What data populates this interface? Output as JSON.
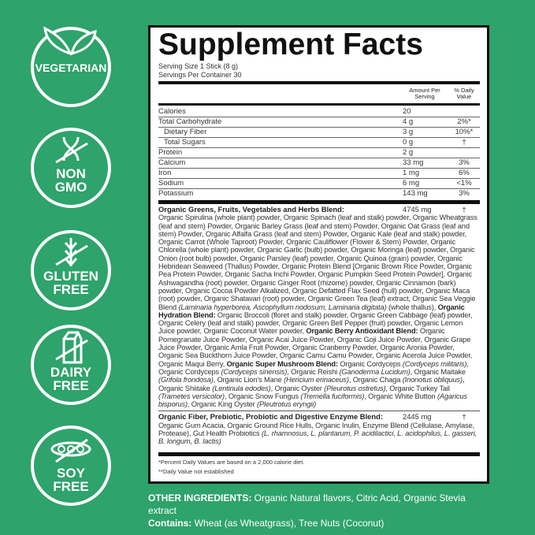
{
  "brand_color": "#2ea36b",
  "badges": [
    {
      "icon": "leaf-icon",
      "label": "VEGETARIAN"
    },
    {
      "icon": "dna-icon",
      "label": "NON GMO"
    },
    {
      "icon": "wheat-icon",
      "label": "GLUTEN FREE"
    },
    {
      "icon": "milk-carton-icon",
      "label": "DAIRY FREE"
    },
    {
      "icon": "soybean-icon",
      "label": "SOY FREE"
    }
  ],
  "facts": {
    "title": "Supplement Facts",
    "serving_size": "Serving Size 1 Stick (8 g)",
    "servings_per_container": "Servings Per Container 30",
    "col_amount": "Amount Per Serving",
    "col_dv": "% Daily Value",
    "rows": [
      {
        "name": "Calories",
        "amount": "20",
        "dv": ""
      },
      {
        "name": "Total Carbohydrate",
        "amount": "4 g",
        "dv": "2%*"
      },
      {
        "name": "Dietary Fiber",
        "amount": "3 g",
        "dv": "10%*"
      },
      {
        "name": "Total Sugars",
        "amount": "0 g",
        "dv": "†"
      },
      {
        "name": "Protein",
        "amount": "2 g",
        "dv": ""
      },
      {
        "name": "Calcium",
        "amount": "33 mg",
        "dv": "3%"
      },
      {
        "name": "Iron",
        "amount": "1 mg",
        "dv": "6%"
      },
      {
        "name": "Sodium",
        "amount": "6 mg",
        "dv": "<1%"
      },
      {
        "name": "Potassium",
        "amount": "143 mg",
        "dv": "3%"
      }
    ],
    "blend1": {
      "name": "Organic Greens, Fruits, Vegetables and Herbs Blend:",
      "amount": "4745 mg",
      "dv": "†",
      "segments": [
        {
          "s": "",
          "t": "Organic Spirulina (whole plant) powder, Organic Spinach (leaf and stalk) powder, Organic Wheatgrass (leaf and stem) Powder, Organic Barley Grass (leaf and stem) Powder, Organic Oat Grass (leaf and stem) Powder, Organic Alfalfa Grass (leaf and stem) Powder, Organic Kale (leaf and stalk) powder, Organic Carrot (Whole Taproot) Powder, Organic Cauliflower (Flower & Stem) Powder, Organic Chlorella (whole plant) powder, Organic Garlic (bulb) powder, Organic Moringa (leaf) powder, Organic Onion (root bulb) powder, Organic Parsley (leaf) powder, Organic Quinoa (grain) powder, Organic Hebridean Seaweed (Thallus) Powder, Organic Protein Blend [Organic Brown Rice Powder, Organic Pea Protein Powder, Organic Sacha Inchi Powder, Organic Pumpkin Seed Protein Powder], Organic Ashwagandha (root) powder, Organic Ginger Root (rhizome) powder, Organic Cinnamon (bark) powder, Organic Cocoa Powder Alkalized, Organic Defatted Flax Seed (hull) powder, Organic Maca (root) powder, Organic Shatavari (root) powder, Organic Green Tea (leaf) extract, Organic Sea Veggie Blend "
        },
        {
          "s": "i",
          "t": "(Laminaria hyperborea, Ascophyllum nodosum, Laminaria digitata)"
        },
        {
          "s": "",
          "t": " (whole thallus), "
        },
        {
          "s": "b",
          "t": "Organic Hydration Blend:"
        },
        {
          "s": "",
          "t": " Organic Broccoli (floret and stalk) powder, Organic Green Cabbage (leaf) powder, Organic Celery (leaf and stalk) powder, Organic Green Bell Pepper (fruit) powder, Organic Lemon Juice powder, Organic Coconut Water powder, "
        },
        {
          "s": "b",
          "t": "Organic Berry Antioxidant Blend:"
        },
        {
          "s": "",
          "t": " Organic Pomegranate Juice Powder, Organic Acai Juice Powder, Organic Goji Juice Powder, Organic Grape Juice Powder, Organic Amla Fruit Powder, Organic Cranberry Powder, Organic Aronia Powder, Organic Sea Buckthorn Juice Powder, Organic Camu Camu Powder, Organic Acerola Juice Powder, Organic Maqui Berry, "
        },
        {
          "s": "b",
          "t": "Organic Super Mushroom Blend:"
        },
        {
          "s": "",
          "t": " Organic Cordyceps "
        },
        {
          "s": "i",
          "t": "(Cordyceps militaris)"
        },
        {
          "s": "",
          "t": ", Organic Cordyceps "
        },
        {
          "s": "i",
          "t": "(Cordyceps sinensis)"
        },
        {
          "s": "",
          "t": ", Organic Reishi "
        },
        {
          "s": "i",
          "t": "(Ganoderma Lucidum)"
        },
        {
          "s": "",
          "t": ", Organic Maitake "
        },
        {
          "s": "i",
          "t": "(Grifola frondosa)"
        },
        {
          "s": "",
          "t": ", Organic Lion's Mane "
        },
        {
          "s": "i",
          "t": "(Hericium erinaceus)"
        },
        {
          "s": "",
          "t": ", Organic Chaga "
        },
        {
          "s": "i",
          "t": "(Inonotus obliquus)"
        },
        {
          "s": "",
          "t": ", Organic Shiitake "
        },
        {
          "s": "i",
          "t": "(Lentinula edodes)"
        },
        {
          "s": "",
          "t": ", Organic Oyster "
        },
        {
          "s": "i",
          "t": "(Pleurotus ostretus)"
        },
        {
          "s": "",
          "t": ", Organic Turkey Tail "
        },
        {
          "s": "i",
          "t": "(Trametes versicolor)"
        },
        {
          "s": "",
          "t": ", Organic Snow Fungus "
        },
        {
          "s": "i",
          "t": "(Tremella fuciformis)"
        },
        {
          "s": "",
          "t": ", Organic White Button "
        },
        {
          "s": "i",
          "t": "(Agaricus bisporus)"
        },
        {
          "s": "",
          "t": ", Organic King Oyster "
        },
        {
          "s": "i",
          "t": "(Pleutrotus eryngii)"
        }
      ]
    },
    "blend2": {
      "name": "Organic Fiber, Prebiotic, Probiotic and Digestive Enzyme Blend:",
      "amount": "2445 mg",
      "dv": "†",
      "segments": [
        {
          "s": "",
          "t": "Organic Gum Acacia, Organic Ground Rice Hulls, Organic Inulin, Enzyme Blend (Cellulase, Amylase, Protease), Gut Health Probiotics "
        },
        {
          "s": "i",
          "t": "(L. rhamnosus, L. plantarum, P. acidilactici, L. acidophilus, L. gasseri, B. longum, B. lactis)"
        }
      ]
    },
    "footnote1": "*Percent Daily Values are based on a 2,000 calorie diet.",
    "footnote2": "**Daily Value not established"
  },
  "other_ingredients": {
    "label": "OTHER INGREDIENTS:",
    "text": " Organic Natural flavors, Citric Acid, Organic Stevia extract"
  },
  "contains": {
    "label": "Contains:",
    "text": " Wheat (as Wheatgrass), Tree Nuts (Coconut)"
  }
}
